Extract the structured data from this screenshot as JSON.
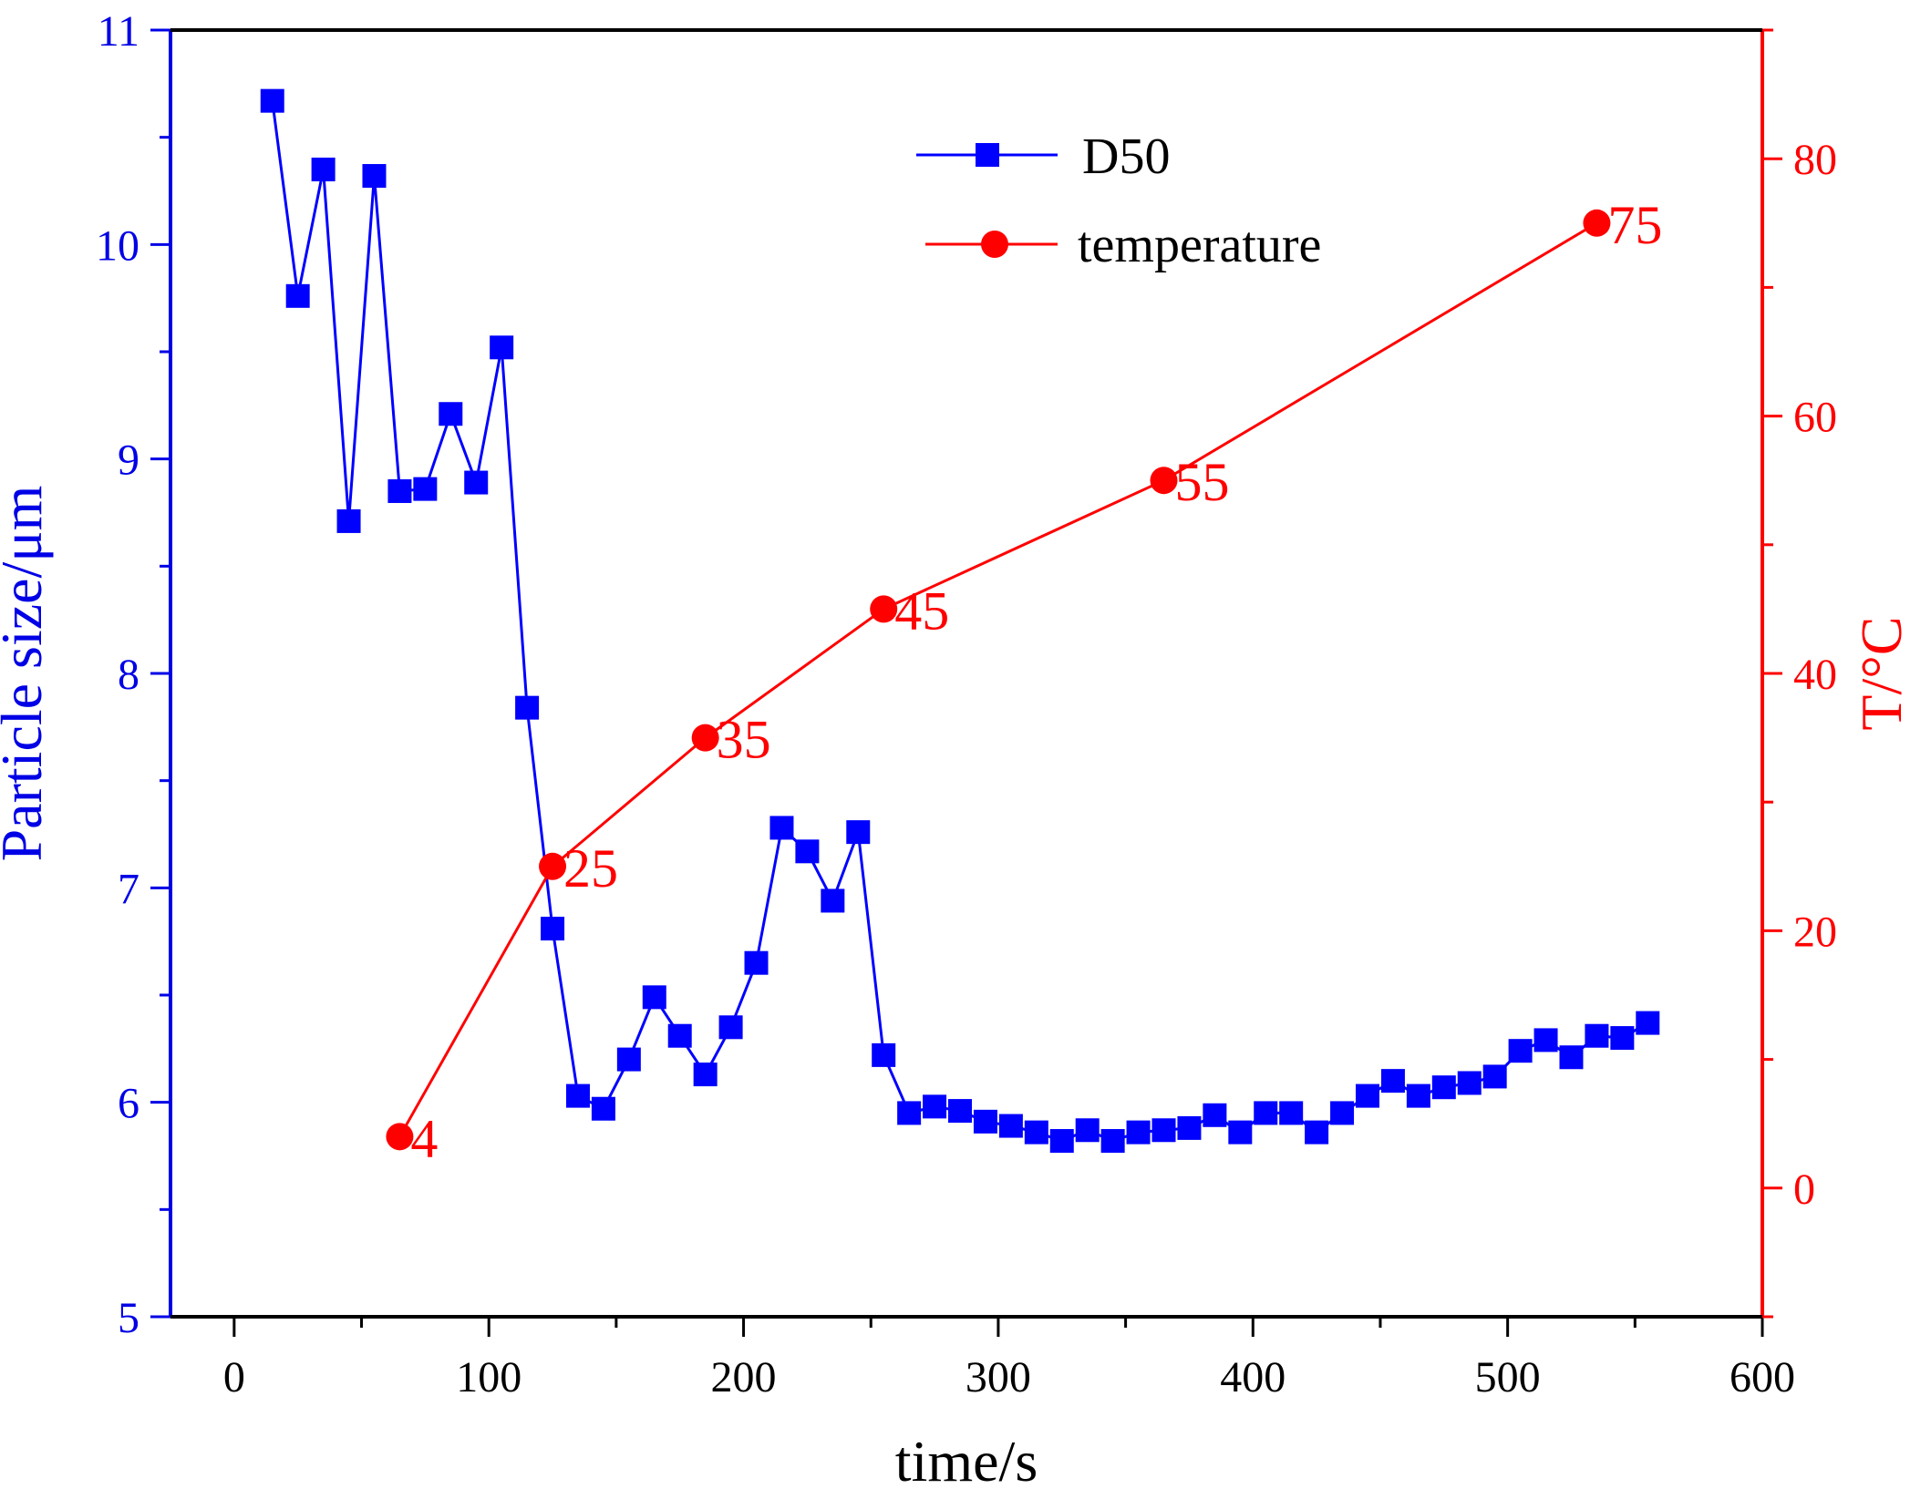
{
  "chart_data": {
    "type": "line",
    "xlabel": "time/s",
    "ylabel_left": "Particle size/μm",
    "ylabel_right": "T/°C",
    "xlim": [
      -25,
      600
    ],
    "ylim_left": [
      5,
      11
    ],
    "ylim_right": [
      -10,
      90
    ],
    "x_ticks": [
      0,
      100,
      200,
      300,
      400,
      500,
      600
    ],
    "y_left_ticks": [
      5,
      6,
      7,
      8,
      9,
      10,
      11
    ],
    "y_right_ticks": [
      0,
      20,
      40,
      60,
      80
    ],
    "grid": false,
    "legend_position": "top-center",
    "colors": {
      "left_axis": "#0000e6",
      "right_axis": "#ff0000",
      "d50": "#0000ff",
      "temperature": "#ff0000"
    },
    "series": [
      {
        "name": "D50",
        "axis": "left",
        "marker": "square",
        "x": [
          15,
          25,
          35,
          45,
          55,
          65,
          75,
          85,
          95,
          105,
          115,
          125,
          135,
          145,
          155,
          165,
          175,
          185,
          195,
          205,
          215,
          225,
          235,
          245,
          255,
          265,
          275,
          285,
          295,
          305,
          315,
          325,
          335,
          345,
          355,
          365,
          375,
          385,
          395,
          405,
          415,
          425,
          435,
          445,
          455,
          465,
          475,
          485,
          495,
          505,
          515,
          525,
          535,
          545,
          555
        ],
        "y": [
          10.67,
          9.76,
          10.35,
          8.71,
          10.32,
          8.85,
          8.86,
          9.21,
          8.89,
          9.52,
          7.84,
          6.81,
          6.03,
          5.97,
          6.2,
          6.49,
          6.31,
          6.13,
          6.35,
          6.65,
          7.28,
          7.17,
          6.94,
          7.26,
          6.22,
          5.95,
          5.98,
          5.96,
          5.91,
          5.89,
          5.86,
          5.82,
          5.87,
          5.82,
          5.86,
          5.87,
          5.88,
          5.94,
          5.86,
          5.95,
          5.95,
          5.86,
          5.95,
          6.03,
          6.1,
          6.03,
          6.07,
          6.09,
          6.12,
          6.24,
          6.29,
          6.21,
          6.31,
          6.3,
          6.37
        ]
      },
      {
        "name": "temperature",
        "axis": "right",
        "marker": "circle",
        "x": [
          65,
          125,
          185,
          255,
          365,
          535
        ],
        "y": [
          4,
          25,
          35,
          45,
          55,
          75
        ],
        "labels": [
          "4",
          "25",
          "35",
          "45",
          "55",
          "75"
        ]
      }
    ]
  }
}
